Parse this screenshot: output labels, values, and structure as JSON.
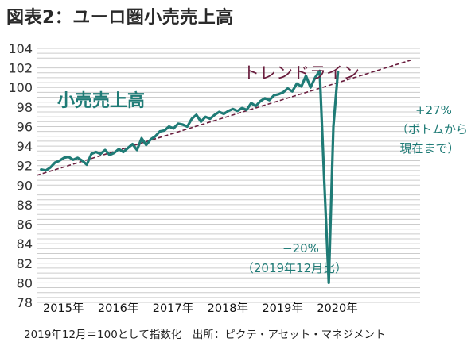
{
  "title": "図表2：ユーロ圏小売売上高",
  "footnote": "2019年12月＝100として指数化　出所：ピクテ・アセット・マネジメント",
  "colors": {
    "series": "#1f7b76",
    "trend": "#6a1e3e",
    "grid": "#cccccc"
  },
  "chart_data": {
    "type": "line",
    "title": "図表2：ユーロ圏小売売上高",
    "ylim": [
      78,
      104
    ],
    "yticks": [
      78,
      80,
      82,
      84,
      86,
      88,
      90,
      92,
      94,
      96,
      98,
      100,
      102,
      104
    ],
    "xlim": [
      "2014-12",
      "2021-12"
    ],
    "xtick_labels": [
      {
        "label": "2015年",
        "x": "2015-01"
      },
      {
        "label": "2016年",
        "x": "2016-01"
      },
      {
        "label": "2017年",
        "x": "2017-01"
      },
      {
        "label": "2018年",
        "x": "2018-01"
      },
      {
        "label": "2019年",
        "x": "2019-01"
      },
      {
        "label": "2020年",
        "x": "2020-01"
      }
    ],
    "grid": true,
    "series": [
      {
        "name": "小売売上高",
        "x": [
          "2015-01",
          "2015-02",
          "2015-03",
          "2015-04",
          "2015-05",
          "2015-06",
          "2015-07",
          "2015-08",
          "2015-09",
          "2015-10",
          "2015-11",
          "2015-12",
          "2016-01",
          "2016-02",
          "2016-03",
          "2016-04",
          "2016-05",
          "2016-06",
          "2016-07",
          "2016-08",
          "2016-09",
          "2016-10",
          "2016-11",
          "2016-12",
          "2017-01",
          "2017-02",
          "2017-03",
          "2017-04",
          "2017-05",
          "2017-06",
          "2017-07",
          "2017-08",
          "2017-09",
          "2017-10",
          "2017-11",
          "2017-12",
          "2018-01",
          "2018-02",
          "2018-03",
          "2018-04",
          "2018-05",
          "2018-06",
          "2018-07",
          "2018-08",
          "2018-09",
          "2018-10",
          "2018-11",
          "2018-12",
          "2019-01",
          "2019-02",
          "2019-03",
          "2019-04",
          "2019-05",
          "2019-06",
          "2019-07",
          "2019-08",
          "2019-09",
          "2019-10",
          "2019-11",
          "2019-12",
          "2020-01",
          "2020-02",
          "2020-03",
          "2020-04",
          "2020-05",
          "2020-06"
        ],
        "values": [
          91.6,
          91.5,
          91.8,
          92.3,
          92.5,
          92.8,
          92.9,
          92.6,
          92.8,
          92.5,
          92.1,
          93.2,
          93.4,
          93.2,
          93.6,
          93.1,
          93.3,
          93.7,
          93.4,
          93.8,
          94.2,
          93.6,
          94.8,
          94.1,
          94.7,
          95.0,
          95.5,
          95.6,
          96.0,
          95.8,
          96.3,
          96.2,
          96.0,
          96.8,
          97.2,
          96.5,
          97.0,
          96.8,
          97.2,
          97.5,
          97.3,
          97.6,
          97.8,
          97.6,
          97.9,
          97.7,
          98.4,
          98.1,
          98.6,
          98.9,
          98.7,
          99.2,
          99.3,
          99.5,
          99.9,
          99.6,
          100.4,
          100.1,
          101.2,
          100.0,
          101.0,
          101.7,
          90.5,
          80.0,
          96.0,
          101.6
        ]
      },
      {
        "name": "トレンドライン",
        "x": [
          "2014-12",
          "2021-10"
        ],
        "values": [
          91.0,
          102.8
        ]
      }
    ],
    "annotations": {
      "series_label": "小売売上高",
      "trend_label": "トレンドライン",
      "drop_line1": "−20%",
      "drop_line2": "（2019年12月比）",
      "rebound_line1": "+27%",
      "rebound_line2": "（ボトムから",
      "rebound_line3": "現在まで）"
    }
  }
}
